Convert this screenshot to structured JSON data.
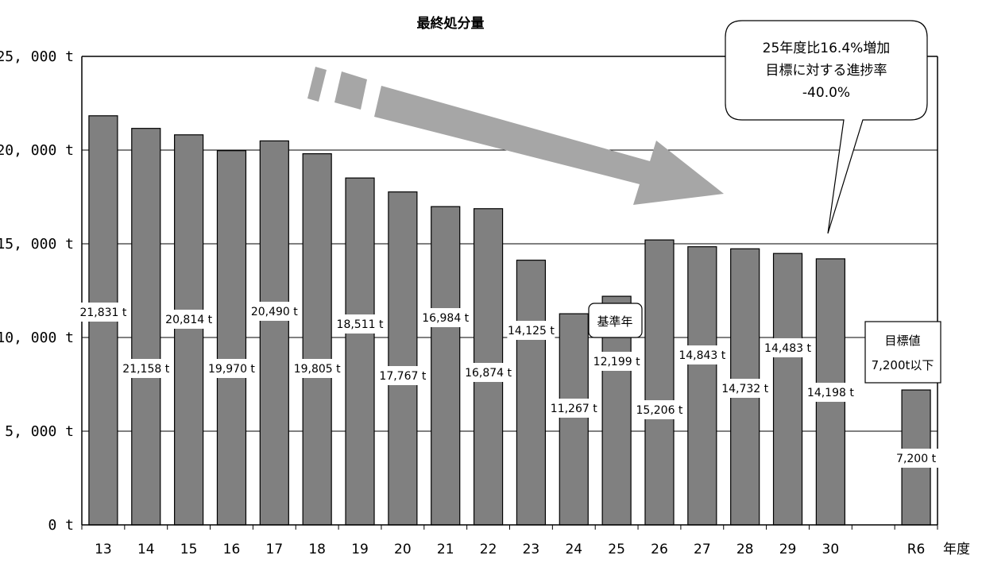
{
  "chart_data": {
    "type": "bar",
    "title": "最終処分量",
    "xlabel": "年度",
    "ylabel": "",
    "ylim": [
      0,
      25000
    ],
    "yticks": [
      0,
      5000,
      10000,
      15000,
      20000,
      25000
    ],
    "ytick_labels": [
      "0 t",
      "5, 000 t",
      "10, 000 t",
      "15, 000 t",
      "20, 000 t",
      "25, 000 t"
    ],
    "grid": true,
    "categories": [
      "13",
      "14",
      "15",
      "16",
      "17",
      "18",
      "19",
      "20",
      "21",
      "22",
      "23",
      "24",
      "25",
      "26",
      "27",
      "28",
      "29",
      "30",
      "",
      "R6"
    ],
    "values": [
      21831,
      21158,
      20814,
      19970,
      20490,
      19805,
      18511,
      17767,
      16984,
      16874,
      14125,
      11267,
      12199,
      15206,
      14843,
      14732,
      14483,
      14198,
      null,
      7200
    ],
    "data_labels": [
      "21,831 t",
      "21,158 t",
      "20,814 t",
      "19,970 t",
      "20,490 t",
      "19,805 t",
      "18,511 t",
      "17,767 t",
      "16,984 t",
      "16,874 t",
      "14,125 t",
      "11,267 t",
      "12,199 t",
      "15,206 t",
      "14,843 t",
      "14,732 t",
      "14,483 t",
      "14,198 t",
      "",
      "7,200 t"
    ],
    "bar_color": "#808080",
    "annotations": {
      "base_year_label": "基準年",
      "target_label_line1": "目標値",
      "target_label_line2": "7,200t以下",
      "callout_line1": "25年度比16.4%増加",
      "callout_line2": "目標に対する進捗率",
      "callout_line3": "-40.0%"
    },
    "arrow_color": "#a6a6a6"
  }
}
